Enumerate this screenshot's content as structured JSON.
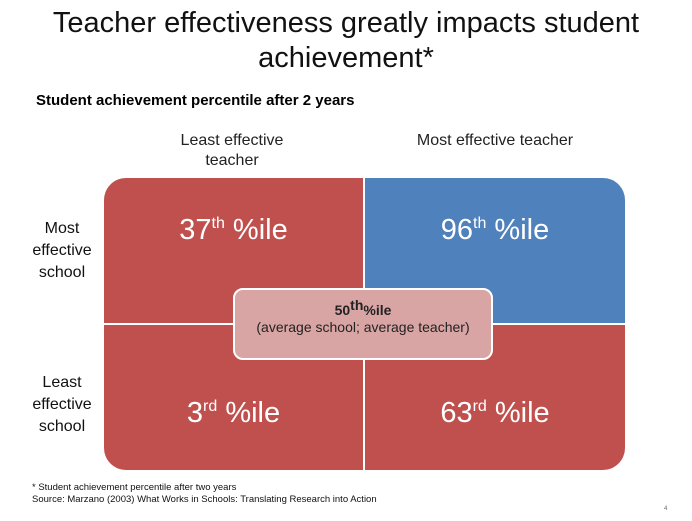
{
  "slide": {
    "title": "Teacher effectiveness greatly impacts student achievement*",
    "subtitle": "Student achievement percentile after 2 years"
  },
  "columns": {
    "least": "Least effective teacher",
    "most": "Most effective teacher"
  },
  "rows": {
    "most": "Most effective school",
    "least": "Least effective school"
  },
  "cells": {
    "most_school_least_teacher": {
      "value": "37",
      "suffix": "th",
      "unit": "%ile"
    },
    "most_school_most_teacher": {
      "value": "96",
      "suffix": "th",
      "unit": "%ile"
    },
    "least_school_least_teacher": {
      "value": "3",
      "suffix": "rd",
      "unit": "%ile"
    },
    "least_school_most_teacher": {
      "value": "63",
      "suffix": "rd",
      "unit": "%ile"
    }
  },
  "center": {
    "value": "50",
    "suffix": "th",
    "unit": "%ile",
    "note": "(average school; average teacher)"
  },
  "footnote": {
    "line1": "* Student achievement  percentile after two years",
    "line2": "Source: Marzano (2003) What Works in Schools: Translating  Research into Action"
  },
  "page_number": "4",
  "colors": {
    "red": "#c0504d",
    "blue": "#4f81bd",
    "center": "#d9a5a4"
  }
}
